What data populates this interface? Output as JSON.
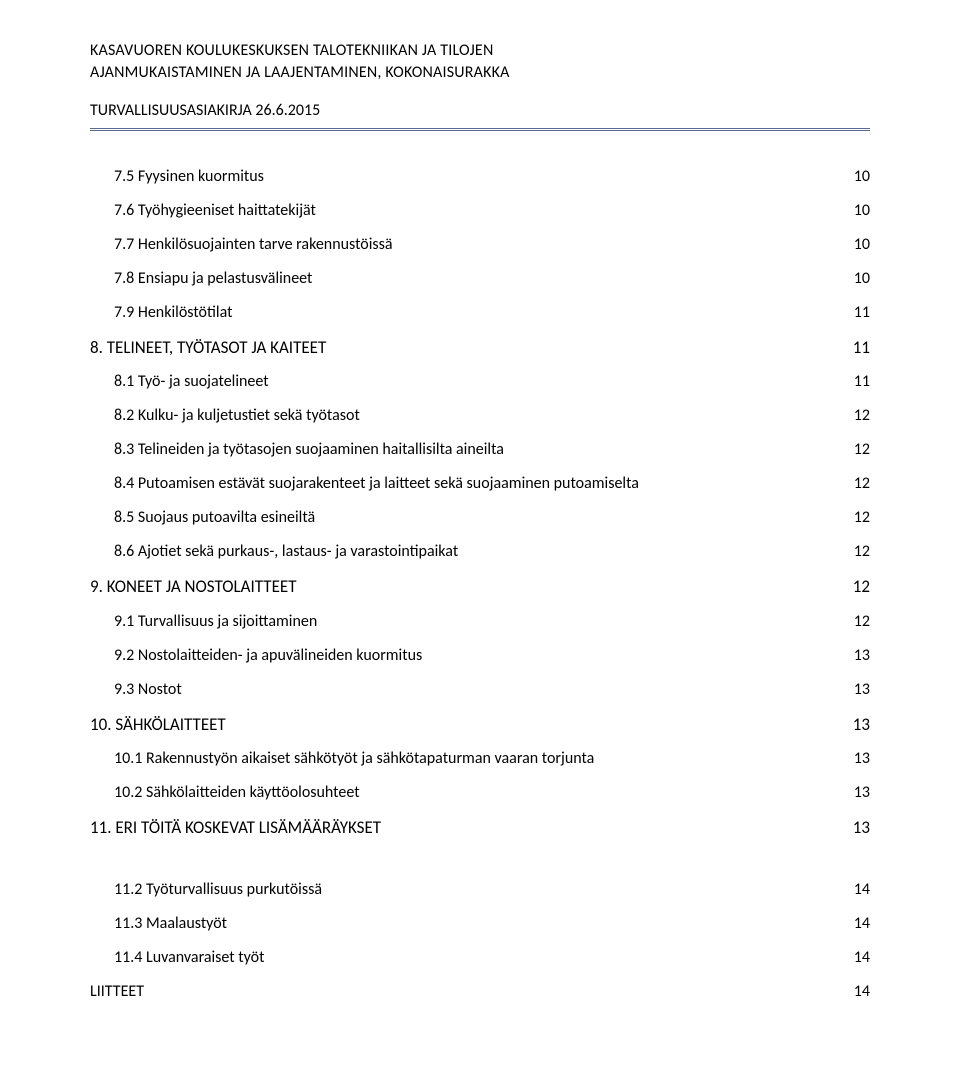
{
  "header": {
    "line1": "KASAVUOREN KOULUKESKUKSEN TALOTEKNIIKAN JA TILOJEN",
    "line2": "AJANMUKAISTAMINEN JA LAAJENTAMINEN, KOKONAISURAKKA",
    "sub": "TURVALLISUUSASIAKIRJA 26.6.2015"
  },
  "entries": [
    {
      "level": 2,
      "label": "7.5 Fyysinen kuormitus",
      "page": "10"
    },
    {
      "level": 2,
      "label": "7.6 Työhygieeniset haittatekijät",
      "page": "10"
    },
    {
      "level": 2,
      "label": "7.7 Henkilösuojainten tarve rakennustöissä",
      "page": "10"
    },
    {
      "level": 2,
      "label": "7.8 Ensiapu ja pelastusvälineet",
      "page": "10"
    },
    {
      "level": 2,
      "label": "7.9 Henkilöstötilat",
      "page": "11"
    },
    {
      "level": 1,
      "label": "8. TELINEET, TYÖTASOT JA KAITEET",
      "page": "11"
    },
    {
      "level": 2,
      "label": "8.1 Työ- ja suojatelineet",
      "page": "11"
    },
    {
      "level": 2,
      "label": "8.2 Kulku- ja kuljetustiet sekä työtasot",
      "page": "12"
    },
    {
      "level": 2,
      "label": "8.3 Telineiden ja työtasojen suojaaminen haitallisilta aineilta",
      "page": "12"
    },
    {
      "level": 2,
      "label": "8.4 Putoamisen estävät suojarakenteet ja laitteet sekä suojaaminen putoamiselta",
      "page": "12"
    },
    {
      "level": 2,
      "label": "8.5 Suojaus putoavilta esineiltä",
      "page": "12"
    },
    {
      "level": 2,
      "label": "8.6 Ajotiet sekä purkaus-, lastaus- ja varastointipaikat",
      "page": "12"
    },
    {
      "level": 1,
      "label": "9. KONEET JA NOSTOLAITTEET",
      "page": "12"
    },
    {
      "level": 2,
      "label": "9.1 Turvallisuus ja sijoittaminen",
      "page": "12"
    },
    {
      "level": 2,
      "label": "9.2 Nostolaitteiden- ja apuvälineiden kuormitus",
      "page": "13"
    },
    {
      "level": 2,
      "label": "9.3 Nostot",
      "page": "13"
    },
    {
      "level": 1,
      "label": "10. SÄHKÖLAITTEET",
      "page": "13"
    },
    {
      "level": 2,
      "label": "10.1 Rakennustyön aikaiset sähkötyöt ja sähkötapaturman vaaran torjunta",
      "page": "13"
    },
    {
      "level": 2,
      "label": "10.2 Sähkölaitteiden käyttöolosuhteet",
      "page": "13"
    },
    {
      "level": 1,
      "label": "11. ERI TÖITÄ KOSKEVAT LISÄMÄÄRÄYKSET",
      "page": "13"
    }
  ],
  "trailing": [
    {
      "level": 2,
      "label": "11.2 Työturvallisuus purkutöissä",
      "page": "14"
    },
    {
      "level": 2,
      "label": "11.3 Maalaustyöt",
      "page": "14"
    },
    {
      "level": 2,
      "label": "11.4 Luvanvaraiset työt",
      "page": "14"
    }
  ],
  "footer": {
    "label": "LIITTEET",
    "page": "14"
  }
}
